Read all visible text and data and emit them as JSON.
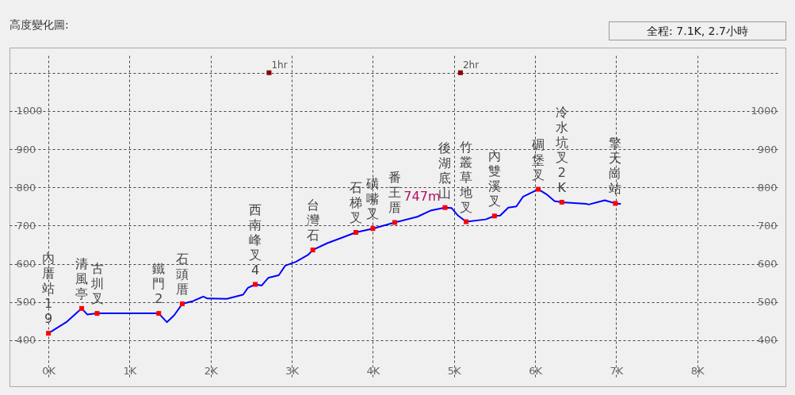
{
  "chart_data": {
    "type": "line",
    "title": "高度變化圖:",
    "subtitle": "全程: 7.1K, 2.7小時",
    "xlim": [
      -0.48,
      9
    ],
    "xticks": [
      {
        "value": 0,
        "label": "0K"
      },
      {
        "value": 1,
        "label": "1K"
      },
      {
        "value": 2,
        "label": "2K"
      },
      {
        "value": 3,
        "label": "3K"
      },
      {
        "value": 4,
        "label": "4K"
      },
      {
        "value": 5,
        "label": "5K"
      },
      {
        "value": 6,
        "label": "6K"
      },
      {
        "value": 7,
        "label": "7K"
      },
      {
        "value": 8,
        "label": "8K"
      },
      {
        "value": 9,
        "label": null
      }
    ],
    "ylim": [
      300,
      1145
    ],
    "yticks": [
      {
        "value": 300,
        "label": null
      },
      400,
      500,
      600,
      700,
      800,
      900,
      1000,
      {
        "value": 1100,
        "label": null
      }
    ],
    "y2lim": [
      300,
      1145
    ],
    "y2ticks": [
      400,
      500,
      600,
      700,
      800,
      900,
      1000
    ],
    "grid": true,
    "series": [
      {
        "color": "#0000ff",
        "x": [
          0,
          0.22,
          0.41,
          0.48,
          0.6,
          1.36,
          1.46,
          1.55,
          1.65,
          1.78,
          1.91,
          1.96,
          2.2,
          2.4,
          2.46,
          2.55,
          2.63,
          2.71,
          2.84,
          2.92,
          3.05,
          3.2,
          3.26,
          3.44,
          3.63,
          3.79,
          4.0,
          4.27,
          4.55,
          4.71,
          4.89,
          4.97,
          5.05,
          5.15,
          5.39,
          5.5,
          5.57,
          5.67,
          5.77,
          5.85,
          6.04,
          6.14,
          6.24,
          6.33,
          6.63,
          6.66,
          6.86,
          6.99,
          7.05
        ],
        "values": [
          418,
          447,
          483,
          467,
          470,
          470,
          447,
          465,
          495,
          502,
          514,
          509,
          508,
          519,
          537,
          546,
          543,
          563,
          570,
          595,
          605,
          623,
          636,
          654,
          669,
          682,
          692,
          708,
          723,
          739,
          747,
          746,
          726,
          710,
          716,
          725,
          726,
          747,
          750,
          775,
          795,
          782,
          764,
          761,
          757,
          755,
          766,
          758,
          757
        ]
      },
      {
        "type": "scatter",
        "marker": "square",
        "color": "#ff0000",
        "x": [
          0,
          0.41,
          0.6,
          1.36,
          1.65,
          2.55,
          3.26,
          3.79,
          4.0,
          4.27,
          4.89,
          5.15,
          5.5,
          6.04,
          6.33,
          6.99
        ],
        "values": [
          418,
          483,
          470,
          470,
          495,
          546,
          636,
          682,
          692,
          708,
          747,
          710,
          725,
          795,
          761,
          758
        ],
        "value_labels": [
          null,
          null,
          null,
          null,
          null,
          null,
          null,
          null,
          null,
          null,
          "747m",
          null,
          null,
          null,
          null,
          null
        ]
      },
      {
        "type": "scatter",
        "marker": "square",
        "name": "1hr",
        "color": "#8b0000",
        "x": [
          2.72
        ],
        "values": [
          1100
        ]
      },
      {
        "type": "scatter",
        "marker": "square",
        "name": "2hr",
        "color": "#8b0000",
        "x": [
          5.08
        ],
        "values": [
          1100
        ]
      }
    ],
    "annotations": [
      {
        "text": "內厝站",
        "x": 0,
        "y": 418
      },
      {
        "text": "19",
        "x": 0,
        "y": 418
      },
      {
        "text": "清風亭",
        "x": 0.41,
        "y": 483
      },
      {
        "text": "古圳叉",
        "x": 0.6,
        "y": 470
      },
      {
        "text": "鐵門",
        "x": 1.36,
        "y": 470
      },
      {
        "text": "2",
        "x": 1.36,
        "y": 470
      },
      {
        "text": "石頭厝",
        "x": 1.65,
        "y": 495
      },
      {
        "text": "西南峰叉",
        "x": 2.55,
        "y": 546
      },
      {
        "text": "4",
        "x": 2.55,
        "y": 546
      },
      {
        "text": "台灣石",
        "x": 3.26,
        "y": 636
      },
      {
        "text": "石梯叉",
        "x": 3.79,
        "y": 682
      },
      {
        "text": "磺嘴叉",
        "x": 4.0,
        "y": 692
      },
      {
        "text": "番王厝",
        "x": 4.27,
        "y": 708
      },
      {
        "text": "後湖底山",
        "x": 4.89,
        "y": 747
      },
      {
        "text": "竹叢草地叉",
        "x": 5.15,
        "y": 710
      },
      {
        "text": "內雙溪叉",
        "x": 5.5,
        "y": 725
      },
      {
        "text": "碉堡叉",
        "x": 6.04,
        "y": 795
      },
      {
        "text": "冷水坑叉",
        "x": 6.33,
        "y": 761
      },
      {
        "text": "2K",
        "x": 6.33,
        "y": 761
      },
      {
        "text": "擎天崗站",
        "x": 6.99,
        "y": 758
      }
    ]
  }
}
